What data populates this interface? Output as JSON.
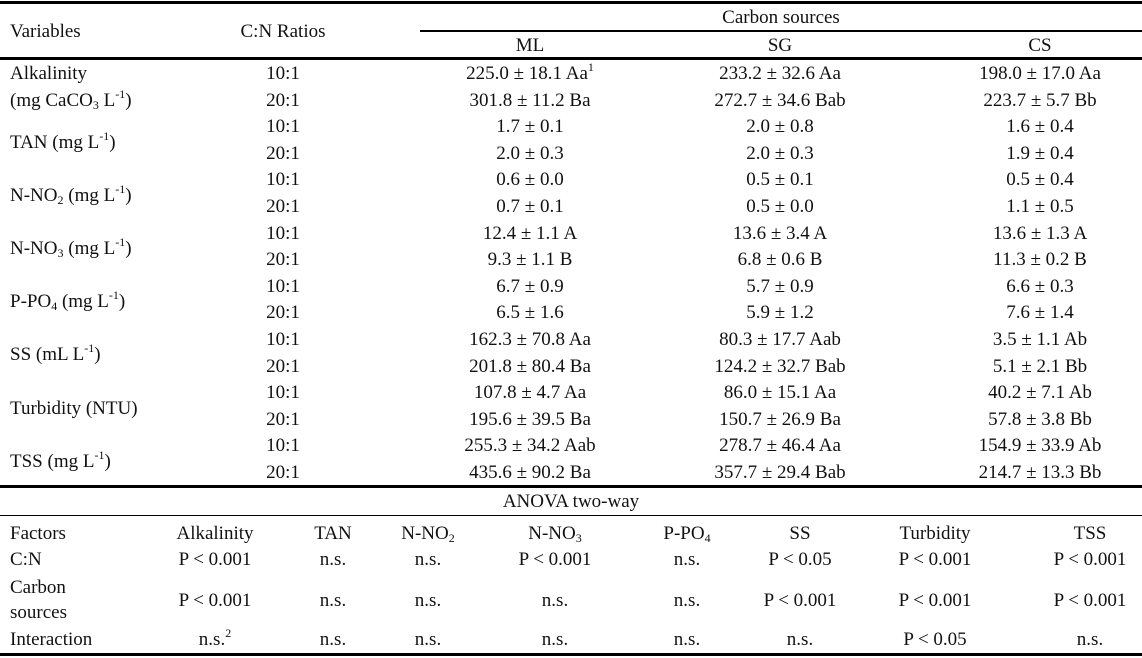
{
  "header": {
    "variables": "Variables",
    "ratios": "C:N Ratios",
    "carbon_sources": "Carbon sources",
    "sources": [
      "ML",
      "SG",
      "CS"
    ]
  },
  "rows": [
    {
      "label": [
        [
          {
            "t": "Alkalinity"
          }
        ],
        [
          {
            "t": "(mg CaCO"
          },
          {
            "sub": "3"
          },
          {
            "t": " L"
          },
          {
            "sup": "-1"
          },
          {
            "t": ")"
          }
        ]
      ],
      "data": [
        {
          "ratio": "10:1",
          "values": [
            "225.0 ± 18.1 Aa",
            "233.2 ± 32.6 Aa",
            "198.0 ± 17.0 Aa"
          ],
          "note": "1"
        },
        {
          "ratio": "20:1",
          "values": [
            "301.8 ± 11.2 Ba",
            "272.7 ± 34.6 Bab",
            "223.7 ± 5.7 Bb"
          ]
        }
      ]
    },
    {
      "label": [
        [
          {
            "t": "TAN (mg L"
          },
          {
            "sup": "-1"
          },
          {
            "t": ")"
          }
        ]
      ],
      "data": [
        {
          "ratio": "10:1",
          "values": [
            "1.7 ± 0.1",
            "2.0 ± 0.8",
            "1.6 ± 0.4"
          ]
        },
        {
          "ratio": "20:1",
          "values": [
            "2.0 ± 0.3",
            "2.0 ± 0.3",
            "1.9 ± 0.4"
          ]
        }
      ]
    },
    {
      "label": [
        [
          {
            "t": "N-NO"
          },
          {
            "sub": "2"
          },
          {
            "t": " (mg L"
          },
          {
            "sup": "-1"
          },
          {
            "t": ")"
          }
        ]
      ],
      "data": [
        {
          "ratio": "10:1",
          "values": [
            "0.6 ± 0.0",
            "0.5 ± 0.1",
            "0.5 ± 0.4"
          ]
        },
        {
          "ratio": "20:1",
          "values": [
            "0.7 ± 0.1",
            "0.5 ± 0.0",
            "1.1 ± 0.5"
          ]
        }
      ]
    },
    {
      "label": [
        [
          {
            "t": "N-NO"
          },
          {
            "sub": "3"
          },
          {
            "t": " (mg L"
          },
          {
            "sup": "-1"
          },
          {
            "t": ")"
          }
        ]
      ],
      "data": [
        {
          "ratio": "10:1",
          "values": [
            "12.4 ± 1.1 A",
            "13.6 ± 3.4 A",
            "13.6 ± 1.3 A"
          ]
        },
        {
          "ratio": "20:1",
          "values": [
            "9.3 ± 1.1 B",
            "6.8 ± 0.6 B",
            "11.3 ± 0.2 B"
          ]
        }
      ]
    },
    {
      "label": [
        [
          {
            "t": "P-PO"
          },
          {
            "sub": "4"
          },
          {
            "t": " (mg L"
          },
          {
            "sup": "-1"
          },
          {
            "t": ")"
          }
        ]
      ],
      "data": [
        {
          "ratio": "10:1",
          "values": [
            "6.7 ± 0.9",
            "5.7 ± 0.9",
            "6.6 ± 0.3"
          ]
        },
        {
          "ratio": "20:1",
          "values": [
            "6.5 ± 1.6",
            "5.9 ± 1.2",
            "7.6 ± 1.4"
          ]
        }
      ]
    },
    {
      "label": [
        [
          {
            "t": "SS (mL L"
          },
          {
            "sup": "-1"
          },
          {
            "t": ")"
          }
        ]
      ],
      "data": [
        {
          "ratio": "10:1",
          "values": [
            "162.3 ± 70.8 Aa",
            "80.3 ± 17.7 Aab",
            "3.5 ± 1.1 Ab"
          ]
        },
        {
          "ratio": "20:1",
          "values": [
            "201.8 ± 80.4 Ba",
            "124.2 ± 32.7 Bab",
            "5.1 ± 2.1 Bb"
          ]
        }
      ]
    },
    {
      "label": [
        [
          {
            "t": "Turbidity (NTU)"
          }
        ]
      ],
      "data": [
        {
          "ratio": "10:1",
          "values": [
            "107.8 ± 4.7 Aa",
            "86.0 ± 15.1 Aa",
            "40.2 ± 7.1 Ab"
          ]
        },
        {
          "ratio": "20:1",
          "values": [
            "195.6 ± 39.5 Ba",
            "150.7 ± 26.9 Ba",
            "57.8 ± 3.8 Bb"
          ]
        }
      ]
    },
    {
      "label": [
        [
          {
            "t": "TSS (mg L"
          },
          {
            "sup": "-1"
          },
          {
            "t": ")"
          }
        ]
      ],
      "data": [
        {
          "ratio": "10:1",
          "values": [
            "255.3 ± 34.2 Aab",
            "278.7 ± 46.4 Aa",
            "154.9 ± 33.9 Ab"
          ]
        },
        {
          "ratio": "20:1",
          "values": [
            "435.6 ± 90.2 Ba",
            "357.7 ± 29.4 Bab",
            "214.7 ± 13.3 Bb"
          ]
        }
      ]
    }
  ],
  "anova": {
    "title": "ANOVA two-way",
    "columns": [
      [
        {
          "t": "Factors"
        }
      ],
      [
        {
          "t": "Alkalinity"
        }
      ],
      [
        {
          "t": "TAN"
        }
      ],
      [
        {
          "t": "N-NO"
        },
        {
          "sub": "2"
        }
      ],
      [
        {
          "t": "N-NO"
        },
        {
          "sub": "3"
        }
      ],
      [
        {
          "t": "P-PO"
        },
        {
          "sub": "4"
        }
      ],
      [
        {
          "t": "SS"
        }
      ],
      [
        {
          "t": "Turbidity"
        }
      ],
      [
        {
          "t": "TSS"
        }
      ]
    ],
    "rows": [
      {
        "factor": [
          "C:N"
        ],
        "values": [
          "P < 0.001",
          "n.s.",
          "n.s.",
          "P < 0.001",
          "n.s.",
          "P < 0.05",
          "P < 0.001",
          "P < 0.001"
        ]
      },
      {
        "factor": [
          "Carbon",
          "sources"
        ],
        "values": [
          "P < 0.001",
          "n.s.",
          "n.s.",
          "n.s.",
          "n.s.",
          "P < 0.001",
          "P < 0.001",
          "P < 0.001"
        ]
      },
      {
        "factor": [
          "Interaction"
        ],
        "values": [
          "n.s.",
          "n.s.",
          "n.s.",
          "n.s.",
          "n.s.",
          "n.s.",
          "P < 0.05",
          "n.s."
        ],
        "note": "2"
      }
    ]
  }
}
